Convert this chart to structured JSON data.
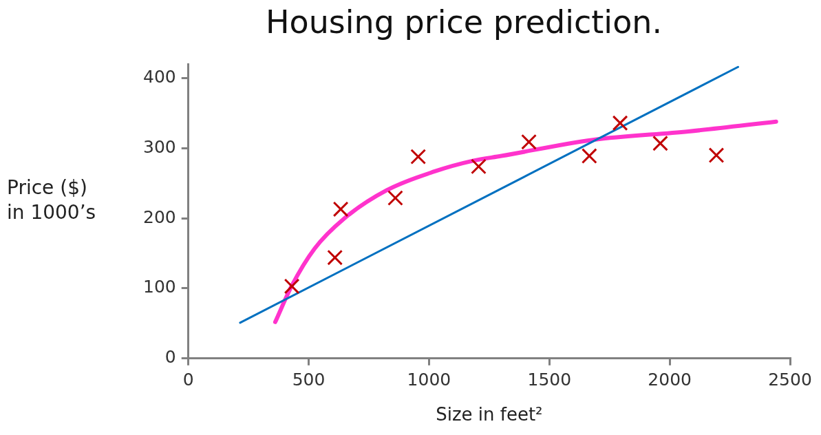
{
  "chart_data": {
    "type": "scatter",
    "title": "Housing price prediction.",
    "xlabel": "Size in feet²",
    "ylabel": "Price ($) in 1000’s",
    "xlim": [
      0,
      2500
    ],
    "xticks": [
      0,
      500,
      1000,
      1500,
      2000,
      2500
    ],
    "ylim": [
      0,
      420
    ],
    "yticks": [
      0,
      100,
      200,
      300,
      400
    ],
    "grid": false,
    "legend": false,
    "series": [
      {
        "marker": "cross",
        "color": "#c00000",
        "x": [
          430,
          609,
          633,
          860,
          955,
          1206,
          1415,
          1666,
          1794,
          1961,
          2194
        ],
        "values": [
          103,
          144,
          213,
          229,
          288,
          274,
          309,
          289,
          336,
          307,
          290
        ]
      },
      {
        "type": "line",
        "line_style": "solid",
        "color": "#0070c0",
        "x": [
          215,
          2284
        ],
        "values": [
          51,
          416
        ]
      },
      {
        "type": "line",
        "line_style": "solid",
        "color": "#ff33cc",
        "x": [
          361,
          430,
          525,
          645,
          824,
          1024,
          1182,
          1301,
          1681,
          2078,
          2442
        ],
        "values": [
          52,
          104,
          157,
          199,
          240,
          267,
          282,
          289,
          312,
          324,
          338
        ]
      }
    ]
  }
}
